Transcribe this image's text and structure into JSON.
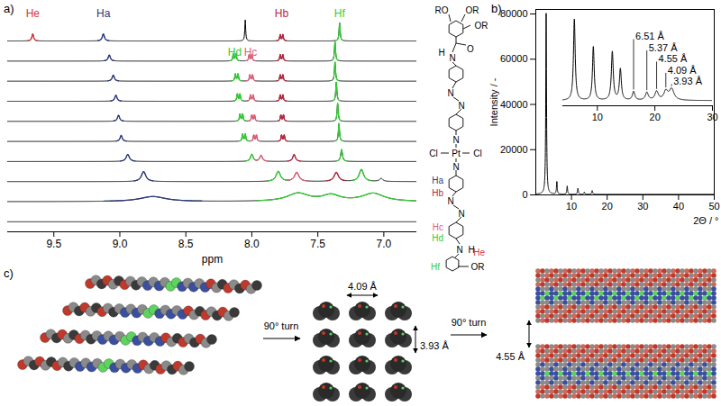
{
  "panel_labels": [
    "a)",
    "b)",
    "c)"
  ],
  "chart_data": [
    {
      "type": "line",
      "x_label": "ppm",
      "xlim": [
        9.85,
        6.75
      ],
      "xticks": [
        9.5,
        {
          "value": 9,
          "label": "9.0"
        },
        8.5,
        {
          "value": 8,
          "label": "8.0"
        },
        7.5,
        {
          "value": 7,
          "label": "7.0"
        }
      ],
      "tick_labels": "x",
      "grid": false,
      "annotations": [
        {
          "text": "He",
          "ppm": 9.66,
          "color": "#d9343f"
        },
        {
          "text": "Ha",
          "ppm": 9.125,
          "color": "#2b3a7e"
        },
        {
          "text": "Hd",
          "ppm": 8.13,
          "color": "#33cc33"
        },
        {
          "text": "Hc",
          "ppm": 8.01,
          "color": "#e0607a"
        },
        {
          "text": "Hb",
          "ppm": 7.775,
          "color": "#b5283f"
        },
        {
          "text": "Hf",
          "ppm": 7.335,
          "color": "#33cc33"
        }
      ],
      "series": [
        {
          "peaks": [
            {
              "ppm": 9.66,
              "height": 0.35,
              "width": 0.008,
              "color": "#d9343f"
            },
            {
              "ppm": 9.125,
              "height": 0.35,
              "width": 0.01,
              "color": "#2b3a7e"
            },
            {
              "ppm": 8.05,
              "height": 1.05,
              "width": 0.004
            },
            {
              "ppm": 7.785,
              "height": 0.3,
              "width": 0.005,
              "color": "#b5283f"
            },
            {
              "ppm": 7.765,
              "height": 0.3,
              "width": 0.005,
              "color": "#b5283f"
            },
            {
              "ppm": 7.335,
              "height": 0.9,
              "width": 0.005,
              "color": "#33cc33"
            }
          ]
        },
        {
          "peaks": [
            {
              "ppm": 9.08,
              "height": 0.3,
              "width": 0.01,
              "color": "#2b3a7e"
            },
            {
              "ppm": 8.14,
              "height": 0.35,
              "width": 0.005,
              "color": "#33cc33"
            },
            {
              "ppm": 8.12,
              "height": 0.35,
              "width": 0.005,
              "color": "#33cc33"
            },
            {
              "ppm": 8.02,
              "height": 0.3,
              "width": 0.005,
              "color": "#e0607a"
            },
            {
              "ppm": 8.0,
              "height": 0.3,
              "width": 0.005,
              "color": "#e0607a"
            },
            {
              "ppm": 7.785,
              "height": 0.3,
              "width": 0.005,
              "color": "#b5283f"
            },
            {
              "ppm": 7.765,
              "height": 0.3,
              "width": 0.005,
              "color": "#b5283f"
            },
            {
              "ppm": 7.37,
              "height": 0.95,
              "width": 0.005,
              "color": "#33cc33"
            }
          ]
        },
        {
          "peaks": [
            {
              "ppm": 9.05,
              "height": 0.3,
              "width": 0.01,
              "color": "#2b3a7e"
            },
            {
              "ppm": 8.125,
              "height": 0.35,
              "width": 0.005,
              "color": "#33cc33"
            },
            {
              "ppm": 8.105,
              "height": 0.35,
              "width": 0.005,
              "color": "#33cc33"
            },
            {
              "ppm": 8.015,
              "height": 0.3,
              "width": 0.005,
              "color": "#e0607a"
            },
            {
              "ppm": 7.995,
              "height": 0.3,
              "width": 0.005,
              "color": "#e0607a"
            },
            {
              "ppm": 7.785,
              "height": 0.3,
              "width": 0.005,
              "color": "#b5283f"
            },
            {
              "ppm": 7.765,
              "height": 0.3,
              "width": 0.005,
              "color": "#b5283f"
            },
            {
              "ppm": 7.37,
              "height": 0.95,
              "width": 0.005,
              "color": "#33cc33"
            }
          ]
        },
        {
          "peaks": [
            {
              "ppm": 9.03,
              "height": 0.3,
              "width": 0.01,
              "color": "#2b3a7e"
            },
            {
              "ppm": 8.11,
              "height": 0.35,
              "width": 0.005,
              "color": "#33cc33"
            },
            {
              "ppm": 8.09,
              "height": 0.35,
              "width": 0.005,
              "color": "#33cc33"
            },
            {
              "ppm": 8.01,
              "height": 0.3,
              "width": 0.005,
              "color": "#e0607a"
            },
            {
              "ppm": 7.99,
              "height": 0.3,
              "width": 0.005,
              "color": "#e0607a"
            },
            {
              "ppm": 7.785,
              "height": 0.3,
              "width": 0.005,
              "color": "#b5283f"
            },
            {
              "ppm": 7.765,
              "height": 0.3,
              "width": 0.005,
              "color": "#b5283f"
            },
            {
              "ppm": 7.36,
              "height": 0.95,
              "width": 0.005,
              "color": "#33cc33"
            }
          ]
        },
        {
          "peaks": [
            {
              "ppm": 9.01,
              "height": 0.3,
              "width": 0.01,
              "color": "#2b3a7e"
            },
            {
              "ppm": 8.09,
              "height": 0.35,
              "width": 0.005,
              "color": "#33cc33"
            },
            {
              "ppm": 8.07,
              "height": 0.35,
              "width": 0.005,
              "color": "#33cc33"
            },
            {
              "ppm": 8.0,
              "height": 0.3,
              "width": 0.005,
              "color": "#e0607a"
            },
            {
              "ppm": 7.98,
              "height": 0.3,
              "width": 0.005,
              "color": "#e0607a"
            },
            {
              "ppm": 7.78,
              "height": 0.3,
              "width": 0.005,
              "color": "#b5283f"
            },
            {
              "ppm": 7.76,
              "height": 0.3,
              "width": 0.005,
              "color": "#b5283f"
            },
            {
              "ppm": 7.35,
              "height": 0.9,
              "width": 0.005,
              "color": "#33cc33"
            }
          ]
        },
        {
          "peaks": [
            {
              "ppm": 8.99,
              "height": 0.3,
              "width": 0.01,
              "color": "#2b3a7e"
            },
            {
              "ppm": 8.07,
              "height": 0.35,
              "width": 0.005,
              "color": "#33cc33"
            },
            {
              "ppm": 8.05,
              "height": 0.35,
              "width": 0.005,
              "color": "#33cc33"
            },
            {
              "ppm": 7.985,
              "height": 0.3,
              "width": 0.005,
              "color": "#e0607a"
            },
            {
              "ppm": 7.965,
              "height": 0.3,
              "width": 0.005,
              "color": "#e0607a"
            },
            {
              "ppm": 7.775,
              "height": 0.3,
              "width": 0.005,
              "color": "#b5283f"
            },
            {
              "ppm": 7.755,
              "height": 0.3,
              "width": 0.005,
              "color": "#b5283f"
            },
            {
              "ppm": 7.34,
              "height": 0.9,
              "width": 0.005,
              "color": "#33cc33"
            }
          ]
        },
        {
          "peaks": [
            {
              "ppm": 8.94,
              "height": 0.35,
              "width": 0.015,
              "color": "#2b3a7e"
            },
            {
              "ppm": 8.0,
              "height": 0.35,
              "width": 0.012,
              "color": "#33cc33"
            },
            {
              "ppm": 7.93,
              "height": 0.3,
              "width": 0.012,
              "color": "#e0607a"
            },
            {
              "ppm": 7.68,
              "height": 0.35,
              "width": 0.012,
              "color": "#b5283f"
            },
            {
              "ppm": 7.32,
              "height": 0.6,
              "width": 0.008,
              "color": "#33cc33"
            }
          ]
        },
        {
          "peaks": [
            {
              "ppm": 8.82,
              "height": 0.5,
              "width": 0.02,
              "color": "#2b3a7e"
            },
            {
              "ppm": 7.8,
              "height": 0.5,
              "width": 0.02,
              "color": "#33cc33"
            },
            {
              "ppm": 7.66,
              "height": 0.45,
              "width": 0.02,
              "color": "#e0607a"
            },
            {
              "ppm": 7.36,
              "height": 0.45,
              "width": 0.02,
              "color": "#b5283f"
            },
            {
              "ppm": 7.17,
              "height": 0.6,
              "width": 0.02,
              "color": "#33cc33"
            },
            {
              "ppm": 7.02,
              "height": 0.15,
              "width": 0.015
            }
          ]
        },
        {
          "peaks": [
            {
              "ppm": 8.75,
              "height": 0.25,
              "width": 0.12,
              "color": "#2b3a7e"
            },
            {
              "ppm": 7.65,
              "height": 0.4,
              "width": 0.1,
              "color": "#33cc33"
            },
            {
              "ppm": 7.4,
              "height": 0.3,
              "width": 0.08
            },
            {
              "ppm": 7.08,
              "height": 0.4,
              "width": 0.1,
              "color": "#33cc33"
            }
          ]
        },
        {
          "peaks": []
        }
      ]
    },
    {
      "type": "line",
      "x_label": "2Θ / °",
      "y_label": "Intensity / -",
      "xlim": [
        0,
        50
      ],
      "xticks": [
        10,
        20,
        30,
        40,
        50
      ],
      "ylim": [
        0,
        82000
      ],
      "yticks": [
        0,
        20000,
        40000,
        60000,
        80000
      ],
      "grid": false,
      "color": "#000000",
      "background": 300,
      "peaks": [
        {
          "x": 2.9,
          "height": 80000,
          "width": 0.12
        },
        {
          "x": 5.9,
          "height": 5500,
          "width": 0.12
        },
        {
          "x": 8.8,
          "height": 3600,
          "width": 0.12
        },
        {
          "x": 11.8,
          "height": 2600,
          "width": 0.13
        },
        {
          "x": 13.6,
          "height": 900,
          "width": 0.15
        },
        {
          "x": 15.8,
          "height": 1600,
          "width": 0.14
        }
      ]
    },
    {
      "type": "line",
      "xlim": [
        4,
        30
      ],
      "xticks": [
        10,
        20,
        30
      ],
      "ylim": [
        0,
        1.05
      ],
      "tick_labels": "x",
      "grid": false,
      "color": "#000000",
      "background": 0.06,
      "peaks": [
        {
          "x": 6.0,
          "height": 0.94,
          "width": 0.18
        },
        {
          "x": 9.3,
          "height": 0.62,
          "width": 0.18
        },
        {
          "x": 12.6,
          "height": 0.56,
          "width": 0.2
        },
        {
          "x": 14.0,
          "height": 0.36,
          "width": 0.2
        },
        {
          "x": 16.3,
          "height": 0.1,
          "width": 0.25
        },
        {
          "x": 18.6,
          "height": 0.09,
          "width": 0.3
        },
        {
          "x": 20.3,
          "height": 0.1,
          "width": 0.35
        },
        {
          "x": 21.9,
          "height": 0.1,
          "width": 0.4
        },
        {
          "x": 22.9,
          "height": 0.13,
          "width": 0.5
        }
      ],
      "annotations": [
        {
          "x": 16.3,
          "text": "6.51 Å"
        },
        {
          "x": 18.6,
          "text": "5.37 Å"
        },
        {
          "x": 20.3,
          "text": "4.55 Å"
        },
        {
          "x": 21.9,
          "text": "4.09 Å"
        },
        {
          "x": 22.9,
          "text": "3.93 Å"
        }
      ]
    }
  ],
  "structure": {
    "texts": [
      "RO",
      "OR",
      "OR",
      "O",
      "H",
      "N",
      "N",
      "N",
      "N",
      "Cl",
      "Pt",
      "Cl",
      "N",
      "N",
      "N",
      "N",
      "H",
      "OR"
    ],
    "protons": [
      {
        "text": "Ha",
        "color": "#2b3a7e"
      },
      {
        "text": "Hb",
        "color": "#b5283f"
      },
      {
        "text": "Hc",
        "color": "#e0607a"
      },
      {
        "text": "Hd",
        "color": "#33cc33"
      },
      {
        "text": "He",
        "color": "#d9343f"
      },
      {
        "text": "Hf",
        "color": "#33cc33"
      }
    ]
  },
  "diagram": {
    "stack_to_grid": "90° turn",
    "grid_to_layers": "90° turn",
    "grid_horizontal": "4.09 Å",
    "grid_vertical": "3.93 Å",
    "layer_spacing": "4.55 Å"
  }
}
